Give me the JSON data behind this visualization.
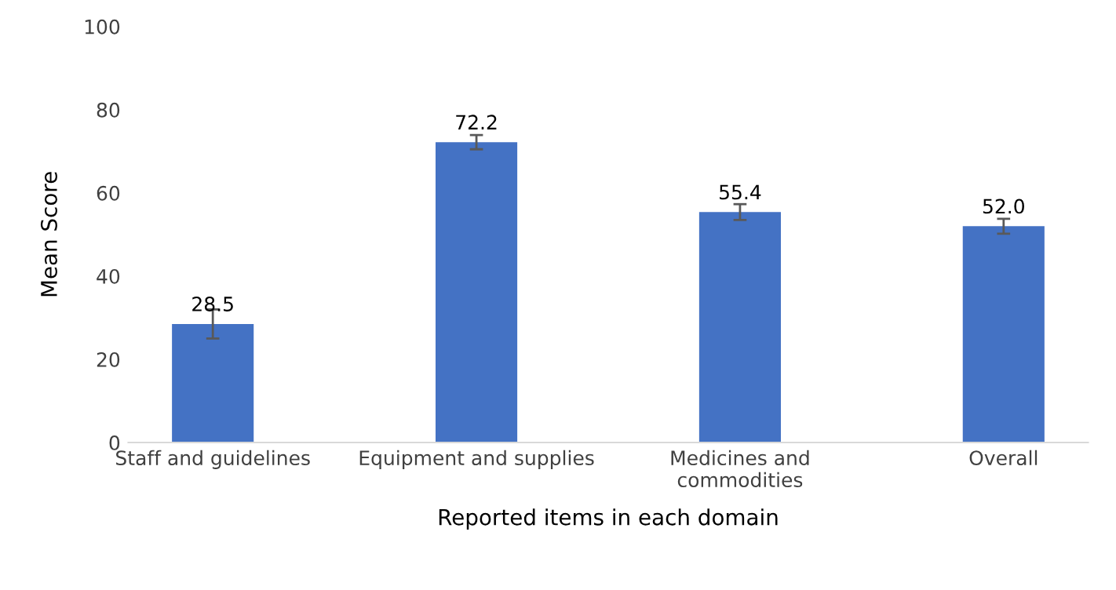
{
  "chart_data": {
    "type": "bar",
    "xlabel": "Reported items in each domain",
    "ylabel": "Mean Score",
    "categories": [
      "Staff and guidelines",
      "Equipment and supplies",
      "Medicines and\ncommodities",
      "Overall"
    ],
    "values": [
      28.5,
      72.2,
      55.4,
      52.0
    ],
    "value_labels": [
      "28.5",
      "72.2",
      "55.4",
      "52.0"
    ],
    "errors": [
      3.5,
      1.7,
      1.9,
      1.8
    ],
    "color": "#4472c4",
    "ylim": [
      0,
      100
    ],
    "yticks": [
      0,
      20,
      40,
      60,
      80,
      100
    ],
    "grid": false,
    "legend": false
  }
}
